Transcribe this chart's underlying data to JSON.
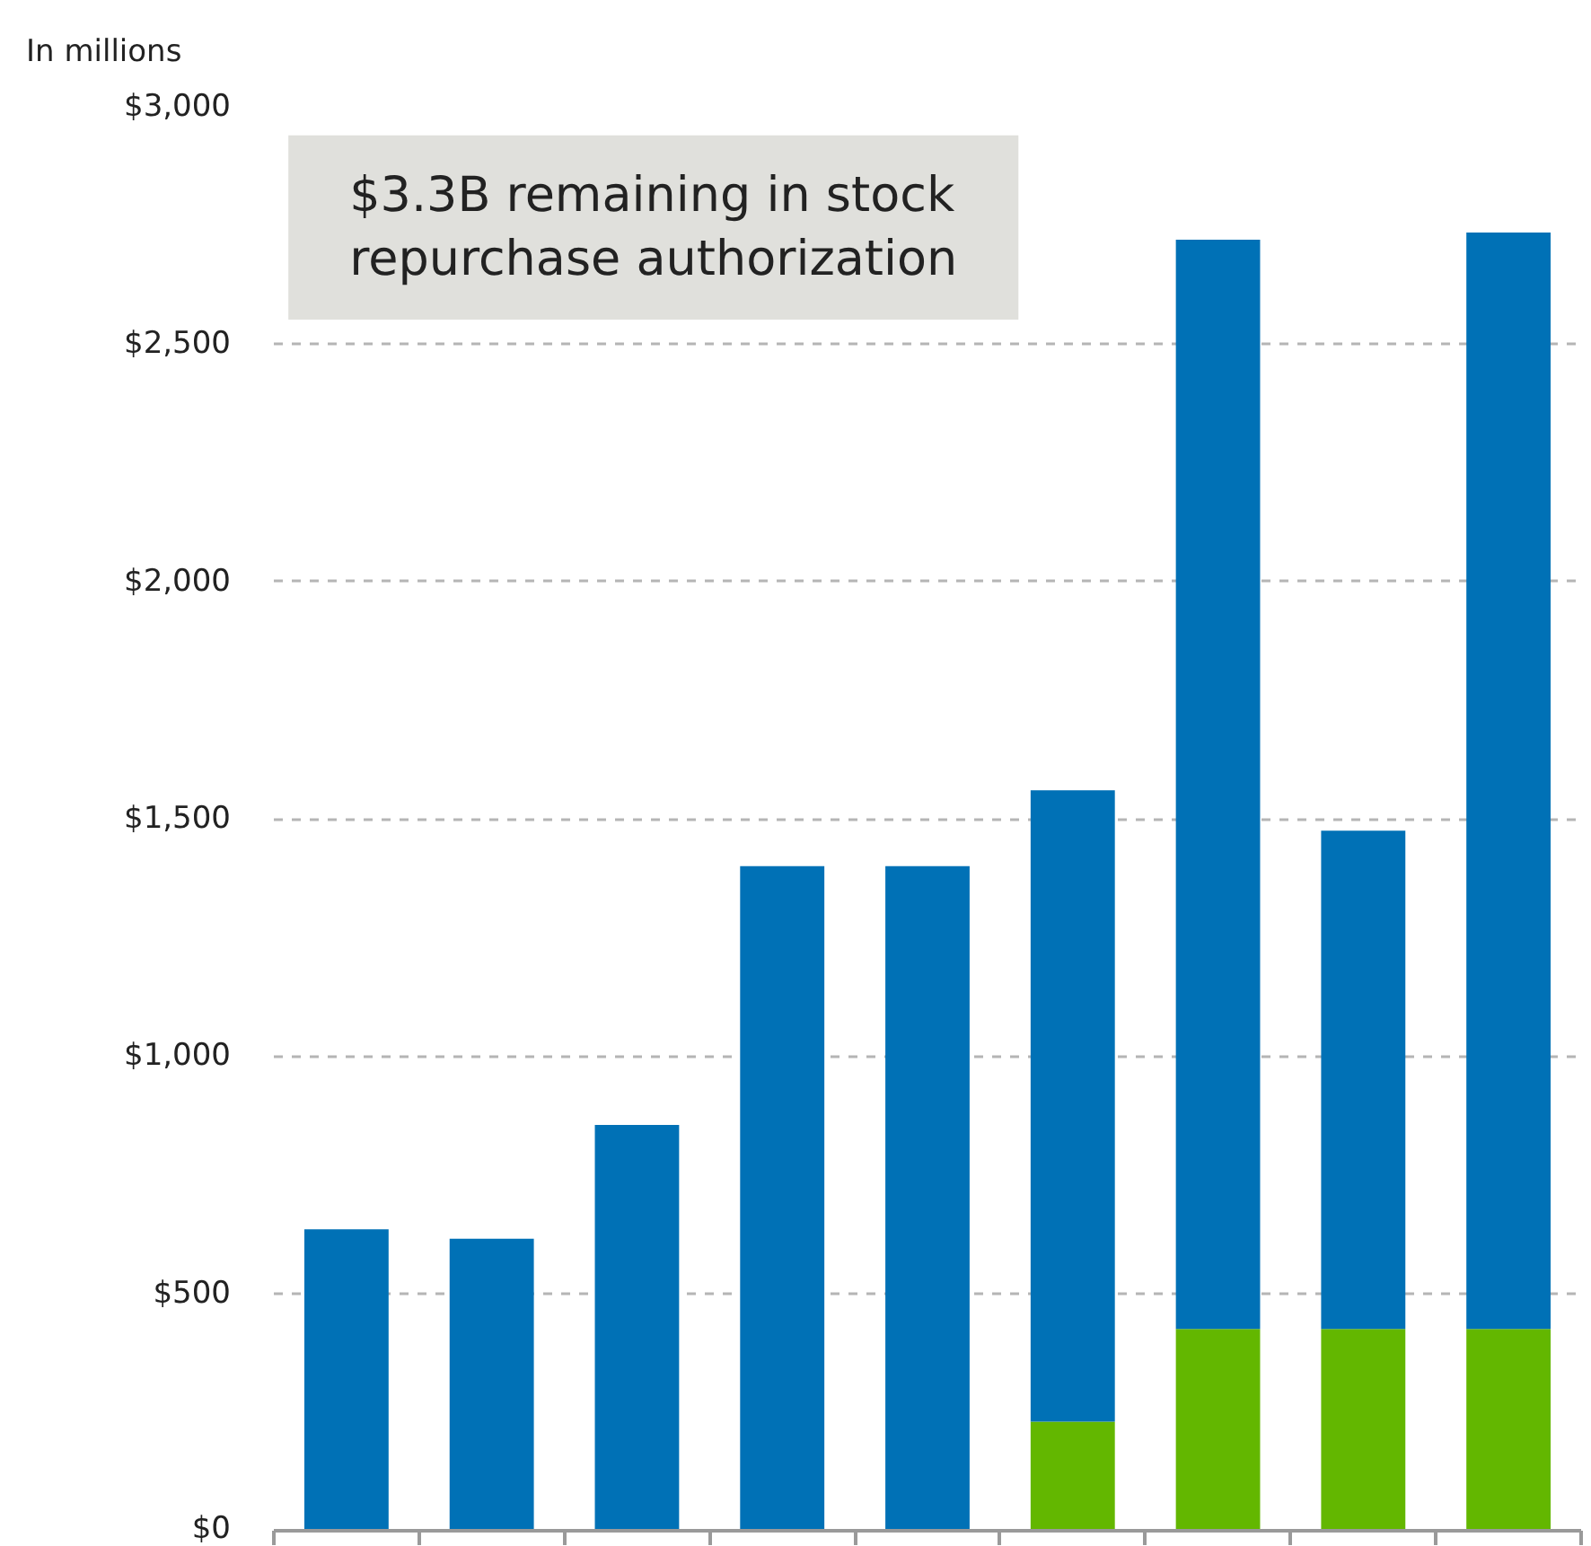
{
  "chart_data": {
    "type": "bar",
    "stacked": true,
    "ylabel": "In millions",
    "annotations": [
      "$3.3B remaining in stock repurchase authorization"
    ],
    "categories": [
      null,
      null,
      null,
      null,
      null,
      null,
      null,
      null,
      null
    ],
    "series": [
      {
        "color": "#63b700",
        "values": [
          null,
          null,
          null,
          null,
          null,
          230,
          425,
          425,
          425
        ]
      },
      {
        "color": "#0071b6",
        "values": [
          635,
          615,
          855,
          1400,
          1400,
          1330,
          2295,
          1050,
          2310
        ]
      }
    ],
    "ylim": [
      0,
      3000
    ],
    "yticks": [
      {
        "value": 0,
        "label": "$0"
      },
      {
        "value": 500,
        "label": "$500"
      },
      {
        "value": 1000,
        "label": "$1,000"
      },
      {
        "value": 1500,
        "label": "$1,500"
      },
      {
        "value": 2000,
        "label": "$2,000"
      },
      {
        "value": 2500,
        "label": "$2,500"
      },
      {
        "value": 3000,
        "label": "$3,000"
      }
    ],
    "grid": "y",
    "tick_labels": "y"
  }
}
